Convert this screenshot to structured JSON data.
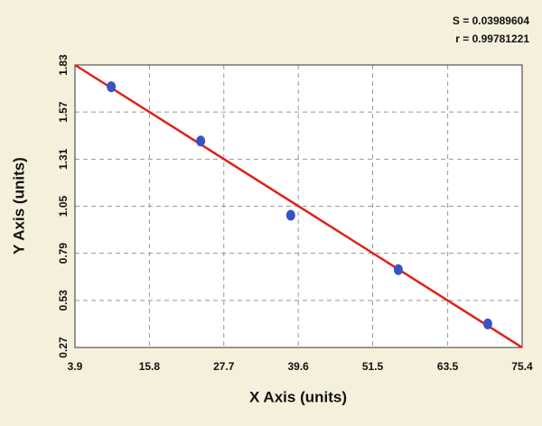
{
  "chart_data": {
    "type": "scatter",
    "annotations": [
      "S = 0.03989604",
      "r = 0.99781221"
    ],
    "x_label": "X Axis (units)",
    "y_label": "Y Axis (units)",
    "x": [
      9.7,
      24.0,
      38.4,
      55.6,
      69.9
    ],
    "values": [
      1.71,
      1.41,
      1.0,
      0.7,
      0.4
    ],
    "color": "#3553c2",
    "fit": {
      "x": [
        3.9,
        75.4
      ],
      "values": [
        1.83,
        0.27
      ],
      "color": "#e0201a"
    },
    "xlim": [
      3.9,
      75.4
    ],
    "xticks": [
      3.9,
      15.8,
      27.7,
      39.6,
      51.5,
      63.5,
      75.4
    ],
    "ylim": [
      0.27,
      1.83
    ],
    "yticks": [
      0.27,
      0.53,
      0.79,
      1.05,
      1.31,
      1.57,
      1.83
    ],
    "grid": true
  }
}
